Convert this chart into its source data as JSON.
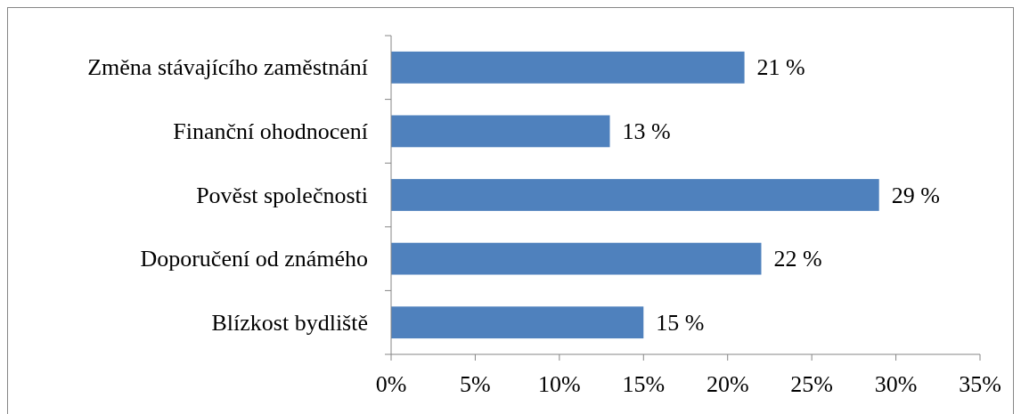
{
  "chart_data": {
    "type": "bar",
    "orientation": "horizontal",
    "categories": [
      "Změna stávajícího zaměstnání",
      "Finanční ohodnocení",
      "Pověst společnosti",
      "Doporučení od známého",
      "Blízkost bydliště"
    ],
    "values": [
      21,
      13,
      29,
      22,
      15
    ],
    "value_labels": [
      "21 %",
      "13 %",
      "29 %",
      "22 %",
      "15 %"
    ],
    "color": "#4f81bd",
    "xlim": [
      0,
      35
    ],
    "xticks": [
      {
        "value": 0,
        "label": "0%"
      },
      {
        "value": 5,
        "label": "5%"
      },
      {
        "value": 10,
        "label": "10%"
      },
      {
        "value": 15,
        "label": "15%"
      },
      {
        "value": 20,
        "label": "20%"
      },
      {
        "value": 25,
        "label": "25%"
      },
      {
        "value": 30,
        "label": "30%"
      },
      {
        "value": 35,
        "label": "35%"
      }
    ],
    "grid": false
  }
}
